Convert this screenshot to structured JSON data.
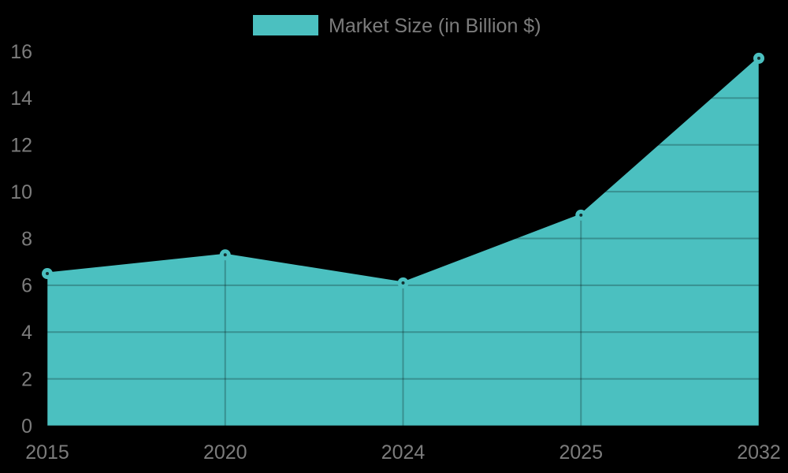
{
  "background_color": "#000000",
  "legend": {
    "label": "Market Size (in Billion $)",
    "swatch_color": "#4BC0C0",
    "text_color": "#7C7C7C",
    "position": "top"
  },
  "chart_data": {
    "type": "area",
    "categories": [
      "2015",
      "2020",
      "2024",
      "2025",
      "2032"
    ],
    "series": [
      {
        "name": "Market Size (in Billion $)",
        "values": [
          6.5,
          7.3,
          6.1,
          9.0,
          15.7
        ]
      }
    ],
    "title": "",
    "xlabel": "",
    "ylabel": "",
    "ylim": [
      0,
      16
    ],
    "y_ticks": [
      0,
      2,
      4,
      6,
      8,
      10,
      12,
      14,
      16
    ],
    "grid": true,
    "legend_position": "top",
    "colors": {
      "series_fill": "#4BC0C0",
      "series_line": "#4BC0C0",
      "marker_fill": "#4BC0C0",
      "marker_center": "rgba(0,0,0,0.75)",
      "gridline": "rgba(0,0,0,0.25)",
      "axis_text": "#7C7C7C",
      "background": "#000000"
    }
  }
}
